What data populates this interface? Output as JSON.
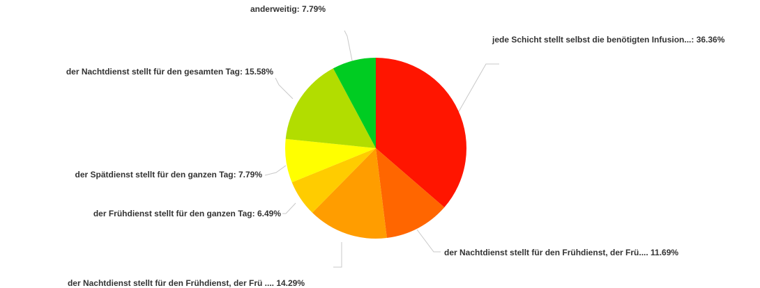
{
  "chart_data": {
    "type": "pie",
    "values": [
      36.36,
      11.69,
      14.29,
      6.49,
      7.79,
      15.58,
      7.79
    ],
    "value_labels": [
      "jede Schicht stellt selbst die benötigten Infusion...: 36.36%",
      "der Nachtdienst stellt für den Frühdienst, der Frü.... 11.69%",
      "der Nachtdienst stellt für den Frühdienst, der Frü .... 14.29%",
      "der Frühdienst stellt für den ganzen Tag: 6.49%",
      "der Spätdienst stellt für den ganzen Tag: 7.79%",
      "der Nachtdienst stellt für den gesamten Tag: 15.58%",
      "anderweitig: 7.79%"
    ],
    "colors": [
      "#ff1500",
      "#ff6600",
      "#ff9d00",
      "#ffcc00",
      "#ffff00",
      "#b2dd00",
      "#00cc22"
    ]
  }
}
